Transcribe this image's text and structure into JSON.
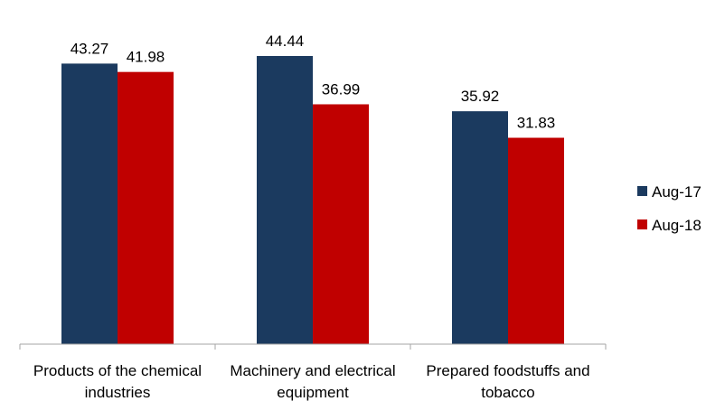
{
  "chart_data": {
    "type": "bar",
    "categories": [
      [
        "Products of the chemical",
        "industries"
      ],
      [
        "Machinery and electrical",
        "equipment"
      ],
      [
        "Prepared foodstuffs and",
        "tobacco"
      ]
    ],
    "series": [
      {
        "name": "Aug-17",
        "color": "#1b3a5f",
        "values": [
          43.27,
          44.44,
          35.92
        ]
      },
      {
        "name": "Aug-18",
        "color": "#c00000",
        "values": [
          41.98,
          36.99,
          31.83
        ]
      }
    ],
    "ylim": [
      0,
      50
    ],
    "grid": false,
    "legend_position": "right",
    "title": "",
    "xlabel": "",
    "ylabel": ""
  }
}
